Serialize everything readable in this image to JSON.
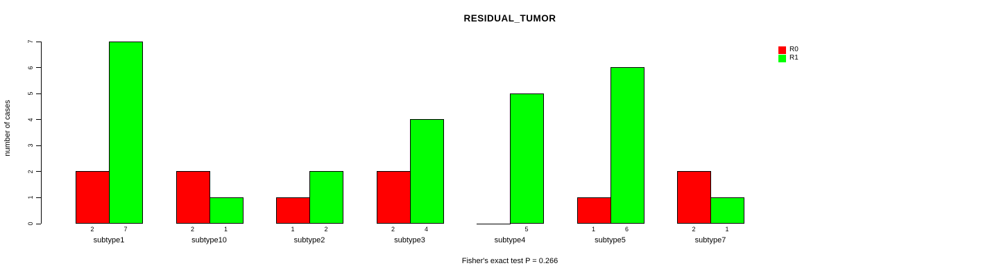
{
  "title": "RESIDUAL_TUMOR",
  "footer": "Fisher's exact test P = 0.266",
  "colors": {
    "r0": "#ff0000",
    "r1": "#00ff00",
    "axis": "#000000",
    "background": "#ffffff"
  },
  "chart_data": {
    "type": "bar",
    "title": "RESIDUAL_TUMOR",
    "xlabel": "",
    "ylabel": "number of cases",
    "categories": [
      "subtype1",
      "subtype10",
      "subtype2",
      "subtype3",
      "subtype4",
      "subtype5",
      "subtype7"
    ],
    "series": [
      {
        "name": "R0",
        "color": "#ff0000",
        "values": [
          2,
          2,
          1,
          2,
          0,
          1,
          2
        ]
      },
      {
        "name": "R1",
        "color": "#00ff00",
        "values": [
          7,
          1,
          2,
          4,
          5,
          6,
          1
        ]
      }
    ],
    "bar_value_labels": {
      "R0": [
        "2",
        "2",
        "1",
        "2",
        "",
        "1",
        "2"
      ],
      "R1": [
        "7",
        "1",
        "2",
        "4",
        "5",
        "6",
        "1"
      ]
    },
    "ylim": [
      0,
      7
    ],
    "yticks": [
      0,
      1,
      2,
      3,
      4,
      5,
      6,
      7
    ],
    "grid": false,
    "legend_position": "top-right",
    "annotation": "Fisher's exact test P = 0.266"
  }
}
